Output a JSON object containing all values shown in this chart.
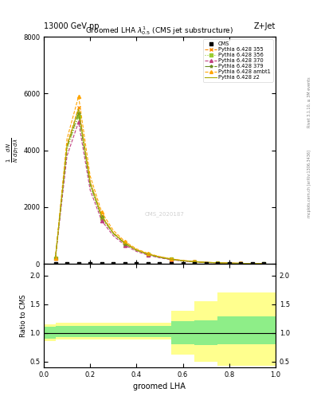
{
  "title_top": "13000 GeV pp",
  "title_right": "Z+Jet",
  "plot_title": "Groomed LHA $\\lambda^{1}_{0.5}$ (CMS jet substructure)",
  "xlabel": "groomed LHA",
  "ylabel_ratio": "Ratio to CMS",
  "right_label_main": "mcplots.cern.ch [arXiv:1306.3436]",
  "right_label_sub": "Rivet 3.1.10, ≥ 3M events",
  "watermark": "CMS_2020187",
  "main_x": [
    0.05,
    0.1,
    0.15,
    0.2,
    0.25,
    0.3,
    0.35,
    0.4,
    0.45,
    0.5,
    0.55,
    0.6,
    0.65,
    0.7,
    0.75,
    0.8,
    0.85,
    0.9,
    0.95
  ],
  "cms_data_x": [
    0.05,
    0.1,
    0.15,
    0.2,
    0.25,
    0.3,
    0.35,
    0.4,
    0.45,
    0.5,
    0.55,
    0.6,
    0.65,
    0.7,
    0.75,
    0.8,
    0.85,
    0.9,
    0.95
  ],
  "cms_data_y": [
    10,
    10,
    10,
    10,
    10,
    10,
    10,
    10,
    10,
    10,
    10,
    10,
    10,
    10,
    10,
    10,
    10,
    10,
    10
  ],
  "p355_y": [
    200,
    4200,
    5500,
    2900,
    1700,
    1100,
    750,
    500,
    350,
    250,
    170,
    120,
    80,
    55,
    40,
    30,
    20,
    12,
    8
  ],
  "p356_y": [
    200,
    4000,
    5200,
    2750,
    1600,
    1050,
    700,
    470,
    330,
    230,
    160,
    110,
    75,
    52,
    38,
    28,
    18,
    11,
    7
  ],
  "p370_y": [
    200,
    3800,
    5000,
    2600,
    1520,
    990,
    660,
    440,
    310,
    215,
    148,
    102,
    70,
    48,
    35,
    26,
    17,
    10,
    6
  ],
  "p379_y": [
    200,
    4100,
    5300,
    2800,
    1650,
    1070,
    715,
    478,
    337,
    234,
    162,
    111,
    76,
    53,
    38,
    28,
    18,
    11,
    7
  ],
  "pambt1_y": [
    200,
    4400,
    5900,
    3100,
    1820,
    1180,
    790,
    530,
    370,
    260,
    180,
    124,
    85,
    59,
    42,
    31,
    20,
    13,
    8
  ],
  "pz2_y": [
    200,
    4150,
    5450,
    2870,
    1670,
    1090,
    730,
    488,
    343,
    240,
    165,
    114,
    78,
    54,
    39,
    29,
    19,
    12,
    7
  ],
  "color_355": "#FF8C00",
  "color_356": "#9ACD32",
  "color_370": "#C04080",
  "color_379": "#6B8E23",
  "color_ambt1": "#FFA500",
  "color_z2": "#AAAA00",
  "ylim_main": [
    0,
    8000
  ],
  "yticks_main": [
    0,
    2000,
    4000,
    6000,
    8000
  ],
  "ylim_ratio": [
    0.4,
    2.2
  ],
  "yticks_ratio": [
    0.5,
    1.0,
    1.5,
    2.0
  ],
  "green_x_edges": [
    0.0,
    0.05,
    0.45,
    0.55,
    0.65,
    0.75,
    1.0
  ],
  "green_lo": [
    0.9,
    0.92,
    0.92,
    0.8,
    0.78,
    0.8,
    0.8
  ],
  "green_hi": [
    1.1,
    1.12,
    1.12,
    1.2,
    1.22,
    1.28,
    1.28
  ],
  "yellow_lo": [
    0.85,
    0.88,
    0.88,
    0.62,
    0.5,
    0.42,
    0.42
  ],
  "yellow_hi": [
    1.15,
    1.18,
    1.18,
    1.38,
    1.55,
    1.7,
    1.7
  ]
}
